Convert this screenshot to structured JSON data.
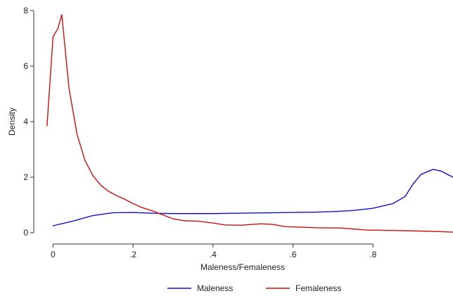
{
  "chart_data": {
    "type": "line",
    "title": "",
    "xlabel": "Maleness/Femaleness",
    "ylabel": "Density",
    "xlim": [
      -0.02,
      1.0
    ],
    "ylim": [
      0,
      8
    ],
    "x_ticks": [
      {
        "value": 0,
        "label": "0"
      },
      {
        "value": 0.2,
        "label": ".2"
      },
      {
        "value": 0.4,
        "label": ".4"
      },
      {
        "value": 0.6,
        "label": ".6"
      },
      {
        "value": 0.8,
        "label": ".8"
      }
    ],
    "y_ticks": [
      {
        "value": 0,
        "label": "0"
      },
      {
        "value": 2,
        "label": "2"
      },
      {
        "value": 4,
        "label": "4"
      },
      {
        "value": 6,
        "label": "6"
      },
      {
        "value": 8,
        "label": "8"
      }
    ],
    "grid": false,
    "legend": {
      "position": "bottom",
      "orientation": "horizontal"
    },
    "series": [
      {
        "name": "Maleness",
        "color": "#1010cc",
        "points": [
          [
            0.0,
            0.25
          ],
          [
            0.05,
            0.42
          ],
          [
            0.1,
            0.62
          ],
          [
            0.15,
            0.72
          ],
          [
            0.2,
            0.73
          ],
          [
            0.25,
            0.7
          ],
          [
            0.3,
            0.69
          ],
          [
            0.35,
            0.69
          ],
          [
            0.4,
            0.69
          ],
          [
            0.45,
            0.7
          ],
          [
            0.5,
            0.71
          ],
          [
            0.55,
            0.72
          ],
          [
            0.6,
            0.73
          ],
          [
            0.65,
            0.74
          ],
          [
            0.7,
            0.76
          ],
          [
            0.75,
            0.8
          ],
          [
            0.8,
            0.88
          ],
          [
            0.85,
            1.05
          ],
          [
            0.88,
            1.3
          ],
          [
            0.9,
            1.75
          ],
          [
            0.92,
            2.1
          ],
          [
            0.95,
            2.28
          ],
          [
            0.97,
            2.22
          ],
          [
            1.0,
            2.0
          ]
        ]
      },
      {
        "name": "Femaleness",
        "color": "#cc1010",
        "points": [
          [
            -0.015,
            3.85
          ],
          [
            0.0,
            7.05
          ],
          [
            0.012,
            7.35
          ],
          [
            0.022,
            7.85
          ],
          [
            0.04,
            5.2
          ],
          [
            0.06,
            3.55
          ],
          [
            0.08,
            2.6
          ],
          [
            0.1,
            2.05
          ],
          [
            0.12,
            1.7
          ],
          [
            0.14,
            1.48
          ],
          [
            0.16,
            1.33
          ],
          [
            0.18,
            1.2
          ],
          [
            0.2,
            1.05
          ],
          [
            0.22,
            0.92
          ],
          [
            0.25,
            0.78
          ],
          [
            0.3,
            0.5
          ],
          [
            0.33,
            0.43
          ],
          [
            0.36,
            0.42
          ],
          [
            0.4,
            0.35
          ],
          [
            0.43,
            0.28
          ],
          [
            0.47,
            0.27
          ],
          [
            0.52,
            0.32
          ],
          [
            0.55,
            0.3
          ],
          [
            0.58,
            0.22
          ],
          [
            0.62,
            0.2
          ],
          [
            0.66,
            0.18
          ],
          [
            0.72,
            0.17
          ],
          [
            0.78,
            0.1
          ],
          [
            0.85,
            0.08
          ],
          [
            0.92,
            0.06
          ],
          [
            0.97,
            0.04
          ],
          [
            1.0,
            0.02
          ]
        ]
      }
    ]
  }
}
